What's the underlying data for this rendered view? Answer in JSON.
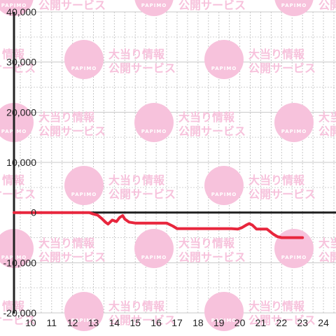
{
  "watermark": {
    "brand": "PAPIMO",
    "line1": "大当り情報",
    "line2": "公開サービス",
    "color": "#f7c2dc"
  },
  "chart_data": {
    "type": "line",
    "title": "",
    "xlabel": "",
    "ylabel": "",
    "xlim": [
      9.2,
      24.6
    ],
    "ylim": [
      -20000,
      40000
    ],
    "xticks": [
      10,
      11,
      12,
      13,
      14,
      15,
      16,
      17,
      18,
      19,
      20,
      21,
      22,
      23,
      24
    ],
    "yticks": [
      -20000,
      -10000,
      0,
      10000,
      20000,
      30000,
      40000
    ],
    "ytick_labels": [
      "-20,000",
      "-10,000",
      "0",
      "10,000",
      "20,000",
      "30,000",
      "40,000"
    ],
    "grid": true,
    "line_color": "#e8263d",
    "x": [
      9.2,
      12.8,
      13.0,
      13.2,
      13.4,
      13.6,
      13.7,
      13.9,
      14.1,
      14.25,
      14.4,
      14.5,
      14.7,
      15.0,
      16.0,
      16.5,
      16.8,
      17.0,
      18.0,
      19.0,
      19.6,
      19.9,
      20.1,
      20.3,
      20.45,
      20.6,
      20.8,
      21.0,
      21.3,
      21.6,
      21.8,
      22.0,
      23.0
    ],
    "y": [
      0,
      0,
      -300,
      -500,
      -1200,
      -2000,
      -2300,
      -1500,
      -1800,
      -1000,
      -600,
      -1300,
      -1900,
      -2100,
      -2100,
      -2100,
      -2700,
      -3200,
      -3200,
      -3200,
      -3200,
      -3300,
      -3000,
      -2500,
      -2200,
      -2500,
      -3300,
      -3300,
      -3300,
      -4300,
      -4800,
      -5000,
      -5000
    ]
  }
}
